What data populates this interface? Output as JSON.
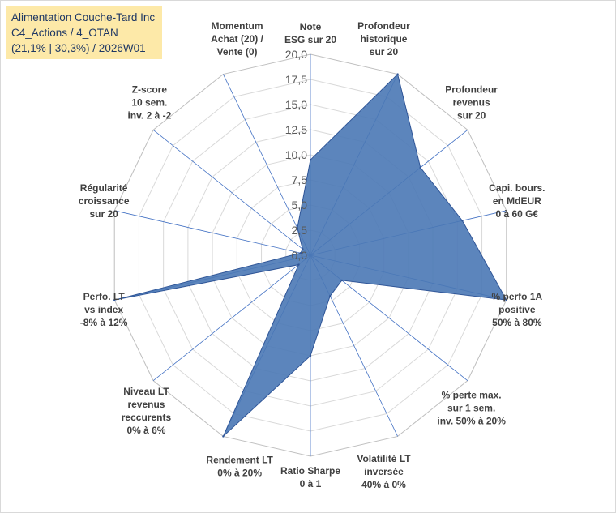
{
  "title_box": {
    "line1": "Alimentation Couche-Tard Inc",
    "line2": "C4_Actions / 4_OTAN",
    "line3": "(21,1% | 30,3%) / 2026W01"
  },
  "colors": {
    "fill": "#4a78b5",
    "stroke": "#2f5597",
    "grid": "#d9d9d9",
    "spoke": "#4472c4",
    "title_bg": "#fde9a8",
    "title_text": "#1f3864"
  },
  "chart_data": {
    "type": "radar",
    "rmin": 0,
    "rmax": 20,
    "tick_labels": [
      "0,0",
      "2,5",
      "5,0",
      "7,5",
      "10,0",
      "12,5",
      "15,0",
      "17,5",
      "20,0"
    ],
    "axes": [
      {
        "lines": [
          "Note",
          "ESG sur 20"
        ],
        "value": 9.5
      },
      {
        "lines": [
          "Profondeur",
          "historique",
          "sur 20"
        ],
        "value": 20.0
      },
      {
        "lines": [
          "Profondeur",
          "revenus",
          "sur 20"
        ],
        "value": 14.0
      },
      {
        "lines": [
          "Capi. bours.",
          "en MdEUR",
          "0 à 60 G€"
        ],
        "value": 15.5
      },
      {
        "lines": [
          "% perfo 1A",
          "positive",
          "50% à 80%"
        ],
        "value": 20.0
      },
      {
        "lines": [
          "% perte max.",
          "sur 1 sem.",
          "inv. 50% à 20%"
        ],
        "value": 4.0
      },
      {
        "lines": [
          "Volatilité LT",
          "inversée",
          "40% à 0%"
        ],
        "value": 4.5
      },
      {
        "lines": [
          "Ratio Sharpe",
          "0 à 1"
        ],
        "value": 10.0
      },
      {
        "lines": [
          "Rendement LT",
          "0% à 20%"
        ],
        "value": 20.0
      },
      {
        "lines": [
          "Niveau LT",
          "revenus",
          "reccurents",
          "0% à 6%"
        ],
        "value": 1.5
      },
      {
        "lines": [
          "Perfo. LT",
          "vs index",
          "-8% à 12%"
        ],
        "value": 20.0
      },
      {
        "lines": [
          "Régularité",
          "croissance",
          "sur 20"
        ],
        "value": 1.0
      },
      {
        "lines": [
          "Z-score",
          "10 sem.",
          "inv. 2 à -2"
        ],
        "value": 1.0
      },
      {
        "lines": [
          "Momentum",
          "Achat (20) /",
          "Vente (0)"
        ],
        "value": 3.0
      }
    ]
  }
}
